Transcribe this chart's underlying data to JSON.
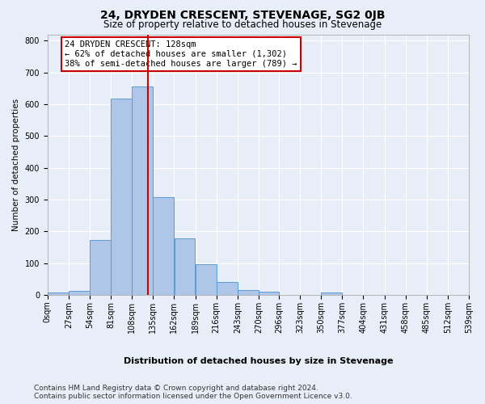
{
  "title": "24, DRYDEN CRESCENT, STEVENAGE, SG2 0JB",
  "subtitle": "Size of property relative to detached houses in Stevenage",
  "xlabel": "Distribution of detached houses by size in Stevenage",
  "ylabel": "Number of detached properties",
  "bin_labels": [
    "0sqm",
    "27sqm",
    "54sqm",
    "81sqm",
    "108sqm",
    "135sqm",
    "162sqm",
    "189sqm",
    "216sqm",
    "243sqm",
    "270sqm",
    "296sqm",
    "323sqm",
    "350sqm",
    "377sqm",
    "404sqm",
    "431sqm",
    "458sqm",
    "485sqm",
    "512sqm",
    "539sqm"
  ],
  "bar_values": [
    8,
    13,
    172,
    617,
    657,
    307,
    178,
    97,
    40,
    15,
    11,
    0,
    0,
    7,
    0,
    0,
    0,
    0,
    0,
    0
  ],
  "bin_edges": [
    0,
    27,
    54,
    81,
    108,
    135,
    162,
    189,
    216,
    243,
    270,
    296,
    323,
    350,
    377,
    404,
    431,
    458,
    485,
    512,
    539
  ],
  "bar_color": "#aec6e8",
  "bar_edge_color": "#5b9bd5",
  "red_line_x": 128,
  "annotation_text": "24 DRYDEN CRESCENT: 128sqm\n← 62% of detached houses are smaller (1,302)\n38% of semi-detached houses are larger (789) →",
  "annotation_box_color": "#ffffff",
  "annotation_box_edge_color": "#cc0000",
  "ylim": [
    0,
    820
  ],
  "yticks": [
    0,
    100,
    200,
    300,
    400,
    500,
    600,
    700,
    800
  ],
  "bg_color": "#e8eef7",
  "plot_bg_color": "#e8eef7",
  "grid_color": "#ffffff",
  "footer_line1": "Contains HM Land Registry data © Crown copyright and database right 2024.",
  "footer_line2": "Contains public sector information licensed under the Open Government Licence v3.0.",
  "title_fontsize": 10,
  "subtitle_fontsize": 8.5,
  "xlabel_fontsize": 8,
  "ylabel_fontsize": 7.5,
  "tick_fontsize": 7,
  "footer_fontsize": 6.5,
  "annot_fontsize": 7.5
}
